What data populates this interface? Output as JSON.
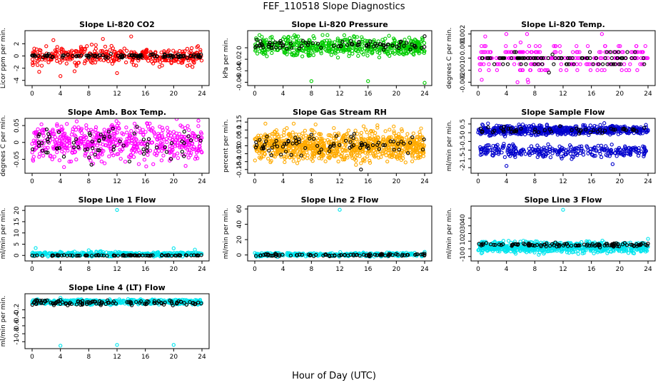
{
  "figure": {
    "title": "FEF_110518  Slope Diagnostics",
    "xlabel": "Hour of Day (UTC)",
    "x_ticks": [
      0,
      4,
      8,
      12,
      16,
      20,
      24
    ]
  },
  "chart_data": [
    {
      "type": "scatter",
      "title": "Slope Li-820 CO2",
      "ylabel": "Licor ppm per min.",
      "xlim": [
        0,
        24
      ],
      "ylim": [
        -4.5,
        3.8
      ],
      "yticks": [
        -4,
        -2,
        0,
        2
      ],
      "series": [
        {
          "color": "#ff0000",
          "center": 0,
          "spread": 0.7,
          "count": 360,
          "outliers": [
            [
              2,
              1.6
            ],
            [
              3,
              2.6
            ],
            [
              4,
              -3.3
            ],
            [
              6,
              -2.5
            ],
            [
              10,
              2.8
            ],
            [
              12,
              -2.8
            ],
            [
              14,
              3.2
            ],
            [
              1,
              -2.6
            ],
            [
              9,
              1.8
            ]
          ]
        },
        {
          "color": "#000000",
          "center": 0,
          "spread": 0.15,
          "count": 110,
          "outliers": []
        }
      ]
    },
    {
      "type": "scatter",
      "title": "Slope Li-820 Pressure",
      "ylabel": "kPa per min.",
      "xlim": [
        0,
        24
      ],
      "ylim": [
        -0.062,
        0.026
      ],
      "yticks": [
        -0.06,
        -0.04,
        -0.02,
        0
      ],
      "series": [
        {
          "color": "#00cc00",
          "center": 0.002,
          "spread": 0.008,
          "count": 520,
          "outliers": [
            [
              8,
              -0.058
            ],
            [
              16,
              -0.058
            ],
            [
              24,
              -0.061
            ],
            [
              1,
              0.019
            ],
            [
              14,
              0.02
            ]
          ]
        },
        {
          "color": "#000000",
          "center": 0.005,
          "spread": 0.004,
          "count": 80,
          "outliers": [
            [
              24,
              0.02
            ]
          ]
        }
      ]
    },
    {
      "type": "scatter",
      "title": "Slope Li-820 Temp.",
      "ylabel": "degrees C per min.",
      "xlim": [
        0,
        24
      ],
      "ylim": [
        -0.0021,
        0.0021
      ],
      "yticks": [
        -0.002,
        -0.001,
        0,
        0.001,
        0.002
      ],
      "levels": [
        -0.002,
        -0.001,
        -0.0005,
        0,
        0.0005,
        0.001,
        0.002
      ],
      "series": [
        {
          "color": "#ff00ff",
          "center": 0,
          "spread": 0.0006,
          "count": 240,
          "outliers": [
            [
              0.5,
              -0.0018
            ],
            [
              1,
              0.0018
            ],
            [
              6,
              0.0013
            ],
            [
              7,
              -0.0018
            ]
          ]
        },
        {
          "color": "#000000",
          "center": 0,
          "spread": 0.0002,
          "count": 100,
          "outliers": [
            [
              10,
              -0.0012
            ],
            [
              10.5,
              0.0003
            ]
          ]
        }
      ]
    },
    {
      "type": "scatter",
      "title": "Slope Amb. Box Temp.",
      "ylabel": "degrees C per min.",
      "xlim": [
        0,
        24
      ],
      "ylim": [
        -0.085,
        0.065
      ],
      "yticks": [
        -0.05,
        0,
        0.05
      ],
      "series": [
        {
          "color": "#ff00ff",
          "center": 0,
          "spread": 0.028,
          "count": 560,
          "outliers": []
        },
        {
          "color": "#000000",
          "center": 0,
          "spread": 0.025,
          "count": 70,
          "outliers": []
        }
      ]
    },
    {
      "type": "scatter",
      "title": "Slope Gas Stream RH",
      "ylabel": "percent per min.",
      "xlim": [
        0,
        24
      ],
      "ylim": [
        -0.16,
        0.16
      ],
      "yticks": [
        -0.15,
        -0.1,
        -0.05,
        0,
        0.05,
        0.1,
        0.15
      ],
      "series": [
        {
          "color": "#ffaa00",
          "center": 0,
          "spread": 0.045,
          "count": 900,
          "outliers": [
            [
              1.5,
              0.14
            ],
            [
              5.5,
              0.14
            ],
            [
              6,
              -0.11
            ],
            [
              15,
              -0.11
            ],
            [
              23.5,
              0.11
            ]
          ]
        },
        {
          "color": "#000000",
          "center": 0,
          "spread": 0.035,
          "count": 80,
          "outliers": [
            [
              15,
              -0.15
            ]
          ]
        }
      ]
    },
    {
      "type": "scatter",
      "title": "Slope Sample Flow",
      "ylabel": "ml/min per min.",
      "xlim": [
        0,
        24
      ],
      "ylim": [
        -2.2,
        0.7
      ],
      "yticks": [
        -2,
        -1.5,
        -1,
        -0.5,
        0,
        0.5
      ],
      "series": [
        {
          "color": "#0000cc",
          "center": 0.15,
          "spread": 0.13,
          "count": 600,
          "outliers": []
        },
        {
          "color": "#0000cc",
          "center": -1.05,
          "spread": 0.18,
          "count": 300,
          "outliers": [
            [
              4,
              -1.9
            ],
            [
              19,
              -1.8
            ]
          ]
        },
        {
          "color": "#000000",
          "center": 0.15,
          "spread": 0.1,
          "count": 50,
          "outliers": []
        }
      ]
    },
    {
      "type": "scatter",
      "title": "Slope Line 1 Flow",
      "ylabel": "ml/min per min.",
      "xlim": [
        0,
        24
      ],
      "ylim": [
        -1.5,
        21
      ],
      "yticks": [
        0,
        5,
        10,
        15,
        20
      ],
      "series": [
        {
          "color": "#00e5ee",
          "center": 0.6,
          "spread": 0.45,
          "count": 420,
          "outliers": [
            [
              12,
              20.2
            ],
            [
              0.5,
              3.3
            ],
            [
              8,
              2.3
            ],
            [
              20,
              3.2
            ],
            [
              23,
              2.6
            ]
          ]
        },
        {
          "color": "#000000",
          "center": 0,
          "spread": 0.1,
          "count": 90,
          "outliers": []
        }
      ]
    },
    {
      "type": "scatter",
      "title": "Slope Line 2 Flow",
      "ylabel": "ml/min per min.",
      "xlim": [
        0,
        24
      ],
      "ylim": [
        -5,
        61
      ],
      "yticks": [
        0,
        20,
        40,
        60
      ],
      "series": [
        {
          "color": "#00e5ee",
          "center": 0.5,
          "spread": 1.2,
          "count": 360,
          "outliers": [
            [
              12,
              59
            ],
            [
              24,
              4
            ]
          ]
        },
        {
          "color": "#000000",
          "center": 0,
          "spread": 0.8,
          "count": 90,
          "outliers": []
        }
      ]
    },
    {
      "type": "scatter",
      "title": "Slope Line 3 Flow",
      "ylabel": "ml/min per min.",
      "xlim": [
        0,
        24
      ],
      "ylim": [
        -13,
        53
      ],
      "yticks": [
        -10,
        0,
        10,
        20,
        30,
        40
      ],
      "series": [
        {
          "color": "#00e5ee",
          "center": 2.5,
          "spread": 3.5,
          "count": 700,
          "outliers": [
            [
              12,
              51
            ],
            [
              24,
              13
            ]
          ]
        },
        {
          "color": "#000000",
          "center": 5,
          "spread": 1.2,
          "count": 110,
          "outliers": []
        }
      ]
    },
    {
      "type": "scatter",
      "title": "Slope Line 4 (LT) Flow",
      "ylabel": "ml/min per min.",
      "xlim": [
        0,
        24
      ],
      "ylim": [
        -1.12,
        0.15
      ],
      "yticks": [
        -1,
        -0.8,
        -0.6,
        -0.4,
        -0.2
      ],
      "series": [
        {
          "color": "#00e5ee",
          "center": 0,
          "spread": 0.03,
          "count": 650,
          "outliers": [
            [
              4,
              -1.1
            ],
            [
              12,
              -1.08
            ],
            [
              20,
              -1.08
            ],
            [
              4,
              0.1
            ]
          ]
        },
        {
          "color": "#000000",
          "center": -0.02,
          "spread": 0.035,
          "count": 110,
          "outliers": [
            [
              4,
              0.05
            ]
          ]
        }
      ]
    }
  ]
}
